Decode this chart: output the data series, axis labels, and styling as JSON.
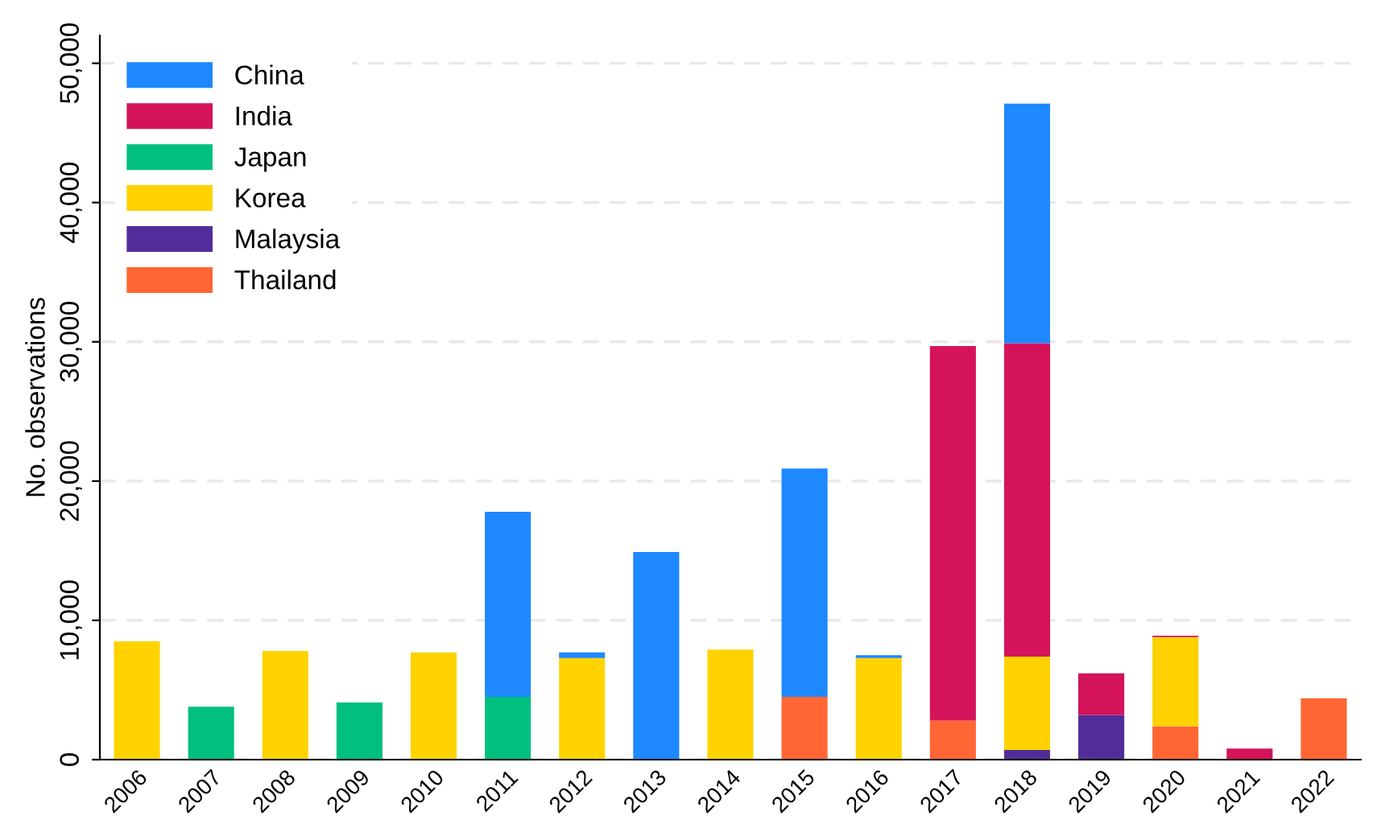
{
  "chart_data": {
    "type": "bar",
    "stacked": true,
    "ylabel": "No. observations",
    "categories": [
      "2006",
      "2007",
      "2008",
      "2009",
      "2010",
      "2011",
      "2012",
      "2013",
      "2014",
      "2015",
      "2016",
      "2017",
      "2018",
      "2019",
      "2020",
      "2021",
      "2022"
    ],
    "series": [
      {
        "name": "Malaysia",
        "color": "#522d9a",
        "values": [
          null,
          null,
          null,
          null,
          null,
          null,
          null,
          null,
          null,
          null,
          null,
          null,
          700,
          3200,
          null,
          null,
          null
        ]
      },
      {
        "name": "Thailand",
        "color": "#ff6633",
        "values": [
          null,
          null,
          null,
          null,
          null,
          null,
          null,
          null,
          null,
          4500,
          null,
          2800,
          null,
          null,
          2400,
          null,
          4400
        ]
      },
      {
        "name": "Japan",
        "color": "#00bf7f",
        "values": [
          null,
          3800,
          null,
          4100,
          null,
          4500,
          null,
          null,
          null,
          null,
          null,
          null,
          null,
          null,
          null,
          null,
          null
        ]
      },
      {
        "name": "Korea",
        "color": "#ffd200",
        "values": [
          8500,
          null,
          7800,
          null,
          7700,
          null,
          7300,
          null,
          7900,
          null,
          7300,
          null,
          6700,
          null,
          6400,
          null,
          null
        ]
      },
      {
        "name": "India",
        "color": "#d5135a",
        "values": [
          null,
          null,
          null,
          null,
          null,
          null,
          null,
          null,
          null,
          null,
          null,
          26900,
          22500,
          3000,
          100,
          800,
          null
        ]
      },
      {
        "name": "China",
        "color": "#1e88ff",
        "values": [
          null,
          null,
          null,
          null,
          null,
          13300,
          400,
          14900,
          null,
          16400,
          200,
          null,
          17200,
          null,
          null,
          null,
          null
        ]
      }
    ],
    "ylim": [
      0,
      52000
    ],
    "yticks": [
      {
        "value": 0,
        "label": "0"
      },
      {
        "value": 10000,
        "label": "10,000"
      },
      {
        "value": 20000,
        "label": "20,000"
      },
      {
        "value": 30000,
        "label": "30,000"
      },
      {
        "value": 40000,
        "label": "40,000"
      },
      {
        "value": 50000,
        "label": "50,000"
      }
    ],
    "grid": "y",
    "legend": "top left"
  }
}
